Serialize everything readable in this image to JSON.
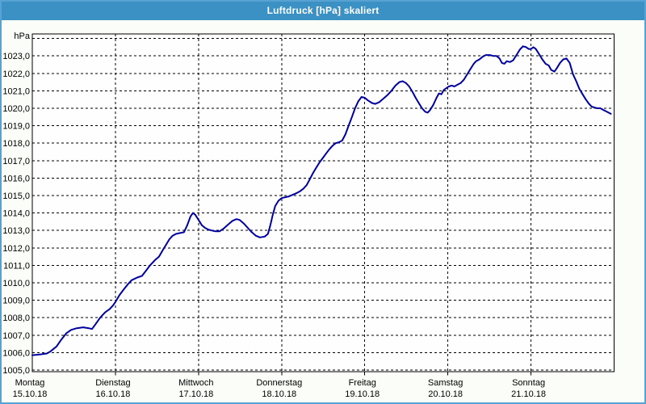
{
  "window": {
    "title": "Luftdruck [hPa] skaliert"
  },
  "colors": {
    "titlebar_bg": "#3B91C4",
    "window_border": "#56A3D3",
    "window_bg": "#FBFDF8",
    "plot_bg": "#FEFEFE",
    "grid": "#000000",
    "line": "#0000A0",
    "text": "#000000"
  },
  "chart_data": {
    "type": "line",
    "title": "Luftdruck [hPa] skaliert",
    "unit_label": "hPa",
    "grid": "dashed",
    "legend": "none",
    "xlim_days": [
      0,
      7
    ],
    "ylim": [
      1005,
      1024.35
    ],
    "x_axis": {
      "days": [
        {
          "name": "Montag",
          "date": "15.10.18"
        },
        {
          "name": "Dienstag",
          "date": "16.10.18"
        },
        {
          "name": "Mittwoch",
          "date": "17.10.18"
        },
        {
          "name": "Donnerstag",
          "date": "18.10.18"
        },
        {
          "name": "Freitag",
          "date": "19.10.18"
        },
        {
          "name": "Samstag",
          "date": "20.10.18"
        },
        {
          "name": "Sonntag",
          "date": "21.10.18"
        }
      ]
    },
    "y_axis": {
      "tick_values": [
        1005,
        1006,
        1007,
        1008,
        1009,
        1010,
        1011,
        1012,
        1013,
        1014,
        1015,
        1016,
        1017,
        1018,
        1019,
        1020,
        1021,
        1022,
        1023
      ],
      "tick_labels": [
        "1005,0",
        "1006,0",
        "1007,0",
        "1008,0",
        "1009,0",
        "1010,0",
        "1011,0",
        "1012,0",
        "1013,0",
        "1014,0",
        "1015,0",
        "1016,0",
        "1017,0",
        "1018,0",
        "1019,0",
        "1020,0",
        "1021,0",
        "1022,0",
        "1023,0"
      ],
      "grid_min": 1005,
      "grid_max": 1024
    },
    "series": [
      {
        "name": "Luftdruck",
        "unit": "hPa",
        "points": [
          [
            0.0,
            1005.85
          ],
          [
            0.097,
            1005.9
          ],
          [
            0.175,
            1005.95
          ],
          [
            0.214,
            1006.05
          ],
          [
            0.291,
            1006.35
          ],
          [
            0.35,
            1006.75
          ],
          [
            0.408,
            1007.1
          ],
          [
            0.466,
            1007.3
          ],
          [
            0.534,
            1007.4
          ],
          [
            0.612,
            1007.45
          ],
          [
            0.68,
            1007.4
          ],
          [
            0.718,
            1007.35
          ],
          [
            0.757,
            1007.6
          ],
          [
            0.816,
            1008.0
          ],
          [
            0.874,
            1008.3
          ],
          [
            0.932,
            1008.5
          ],
          [
            0.971,
            1008.7
          ],
          [
            1.0,
            1008.9
          ],
          [
            1.049,
            1009.3
          ],
          [
            1.097,
            1009.6
          ],
          [
            1.146,
            1009.9
          ],
          [
            1.194,
            1010.15
          ],
          [
            1.262,
            1010.3
          ],
          [
            1.32,
            1010.4
          ],
          [
            1.369,
            1010.7
          ],
          [
            1.417,
            1011.0
          ],
          [
            1.476,
            1011.3
          ],
          [
            1.524,
            1011.5
          ],
          [
            1.573,
            1011.9
          ],
          [
            1.612,
            1012.2
          ],
          [
            1.65,
            1012.5
          ],
          [
            1.689,
            1012.7
          ],
          [
            1.728,
            1012.8
          ],
          [
            1.777,
            1012.85
          ],
          [
            1.825,
            1012.9
          ],
          [
            1.864,
            1013.3
          ],
          [
            1.903,
            1013.8
          ],
          [
            1.932,
            1014.0
          ],
          [
            1.961,
            1013.9
          ],
          [
            2.0,
            1013.6
          ],
          [
            2.039,
            1013.3
          ],
          [
            2.078,
            1013.15
          ],
          [
            2.117,
            1013.05
          ],
          [
            2.155,
            1013.0
          ],
          [
            2.204,
            1012.95
          ],
          [
            2.252,
            1012.95
          ],
          [
            2.301,
            1013.1
          ],
          [
            2.359,
            1013.35
          ],
          [
            2.408,
            1013.55
          ],
          [
            2.456,
            1013.65
          ],
          [
            2.495,
            1013.6
          ],
          [
            2.544,
            1013.4
          ],
          [
            2.592,
            1013.15
          ],
          [
            2.641,
            1012.9
          ],
          [
            2.689,
            1012.7
          ],
          [
            2.738,
            1012.6
          ],
          [
            2.796,
            1012.65
          ],
          [
            2.835,
            1012.8
          ],
          [
            2.864,
            1013.3
          ],
          [
            2.893,
            1013.9
          ],
          [
            2.922,
            1014.4
          ],
          [
            2.961,
            1014.7
          ],
          [
            3.0,
            1014.85
          ],
          [
            3.039,
            1014.9
          ],
          [
            3.087,
            1014.95
          ],
          [
            3.136,
            1015.05
          ],
          [
            3.184,
            1015.15
          ],
          [
            3.223,
            1015.25
          ],
          [
            3.262,
            1015.4
          ],
          [
            3.301,
            1015.6
          ],
          [
            3.34,
            1015.95
          ],
          [
            3.379,
            1016.3
          ],
          [
            3.417,
            1016.6
          ],
          [
            3.456,
            1016.9
          ],
          [
            3.495,
            1017.15
          ],
          [
            3.534,
            1017.4
          ],
          [
            3.573,
            1017.65
          ],
          [
            3.612,
            1017.85
          ],
          [
            3.65,
            1018.0
          ],
          [
            3.689,
            1018.05
          ],
          [
            3.728,
            1018.15
          ],
          [
            3.767,
            1018.5
          ],
          [
            3.806,
            1019.0
          ],
          [
            3.845,
            1019.5
          ],
          [
            3.883,
            1020.0
          ],
          [
            3.922,
            1020.4
          ],
          [
            3.961,
            1020.65
          ],
          [
            4.0,
            1020.6
          ],
          [
            4.039,
            1020.45
          ],
          [
            4.087,
            1020.3
          ],
          [
            4.126,
            1020.25
          ],
          [
            4.175,
            1020.35
          ],
          [
            4.223,
            1020.55
          ],
          [
            4.272,
            1020.75
          ],
          [
            4.32,
            1021.0
          ],
          [
            4.369,
            1021.3
          ],
          [
            4.417,
            1021.5
          ],
          [
            4.456,
            1021.55
          ],
          [
            4.495,
            1021.45
          ],
          [
            4.534,
            1021.25
          ],
          [
            4.573,
            1020.95
          ],
          [
            4.612,
            1020.6
          ],
          [
            4.65,
            1020.3
          ],
          [
            4.689,
            1020.0
          ],
          [
            4.728,
            1019.8
          ],
          [
            4.757,
            1019.75
          ],
          [
            4.786,
            1019.9
          ],
          [
            4.825,
            1020.2
          ],
          [
            4.864,
            1020.6
          ],
          [
            4.893,
            1020.85
          ],
          [
            4.922,
            1020.8
          ],
          [
            4.951,
            1021.05
          ],
          [
            4.981,
            1021.15
          ],
          [
            5.01,
            1021.25
          ],
          [
            5.049,
            1021.3
          ],
          [
            5.078,
            1021.25
          ],
          [
            5.117,
            1021.35
          ],
          [
            5.155,
            1021.45
          ],
          [
            5.194,
            1021.65
          ],
          [
            5.233,
            1021.95
          ],
          [
            5.272,
            1022.25
          ],
          [
            5.311,
            1022.55
          ],
          [
            5.34,
            1022.7
          ],
          [
            5.379,
            1022.8
          ],
          [
            5.417,
            1022.95
          ],
          [
            5.456,
            1023.05
          ],
          [
            5.505,
            1023.05
          ],
          [
            5.544,
            1023.0
          ],
          [
            5.583,
            1023.0
          ],
          [
            5.621,
            1022.85
          ],
          [
            5.65,
            1022.6
          ],
          [
            5.68,
            1022.55
          ],
          [
            5.709,
            1022.7
          ],
          [
            5.748,
            1022.65
          ],
          [
            5.786,
            1022.75
          ],
          [
            5.825,
            1023.05
          ],
          [
            5.864,
            1023.35
          ],
          [
            5.903,
            1023.55
          ],
          [
            5.942,
            1023.5
          ],
          [
            5.971,
            1023.4
          ],
          [
            6.0,
            1023.4
          ],
          [
            6.029,
            1023.5
          ],
          [
            6.058,
            1023.4
          ],
          [
            6.097,
            1023.1
          ],
          [
            6.136,
            1022.8
          ],
          [
            6.175,
            1022.55
          ],
          [
            6.214,
            1022.45
          ],
          [
            6.243,
            1022.2
          ],
          [
            6.282,
            1022.1
          ],
          [
            6.311,
            1022.3
          ],
          [
            6.35,
            1022.6
          ],
          [
            6.388,
            1022.8
          ],
          [
            6.427,
            1022.85
          ],
          [
            6.466,
            1022.6
          ],
          [
            6.505,
            1021.95
          ],
          [
            6.544,
            1021.55
          ],
          [
            6.583,
            1021.1
          ],
          [
            6.621,
            1020.8
          ],
          [
            6.66,
            1020.5
          ],
          [
            6.699,
            1020.25
          ],
          [
            6.728,
            1020.1
          ],
          [
            6.757,
            1020.05
          ],
          [
            6.796,
            1020.0
          ],
          [
            6.835,
            1020.0
          ],
          [
            6.874,
            1019.9
          ],
          [
            6.913,
            1019.8
          ],
          [
            6.961,
            1019.68
          ]
        ]
      }
    ]
  }
}
